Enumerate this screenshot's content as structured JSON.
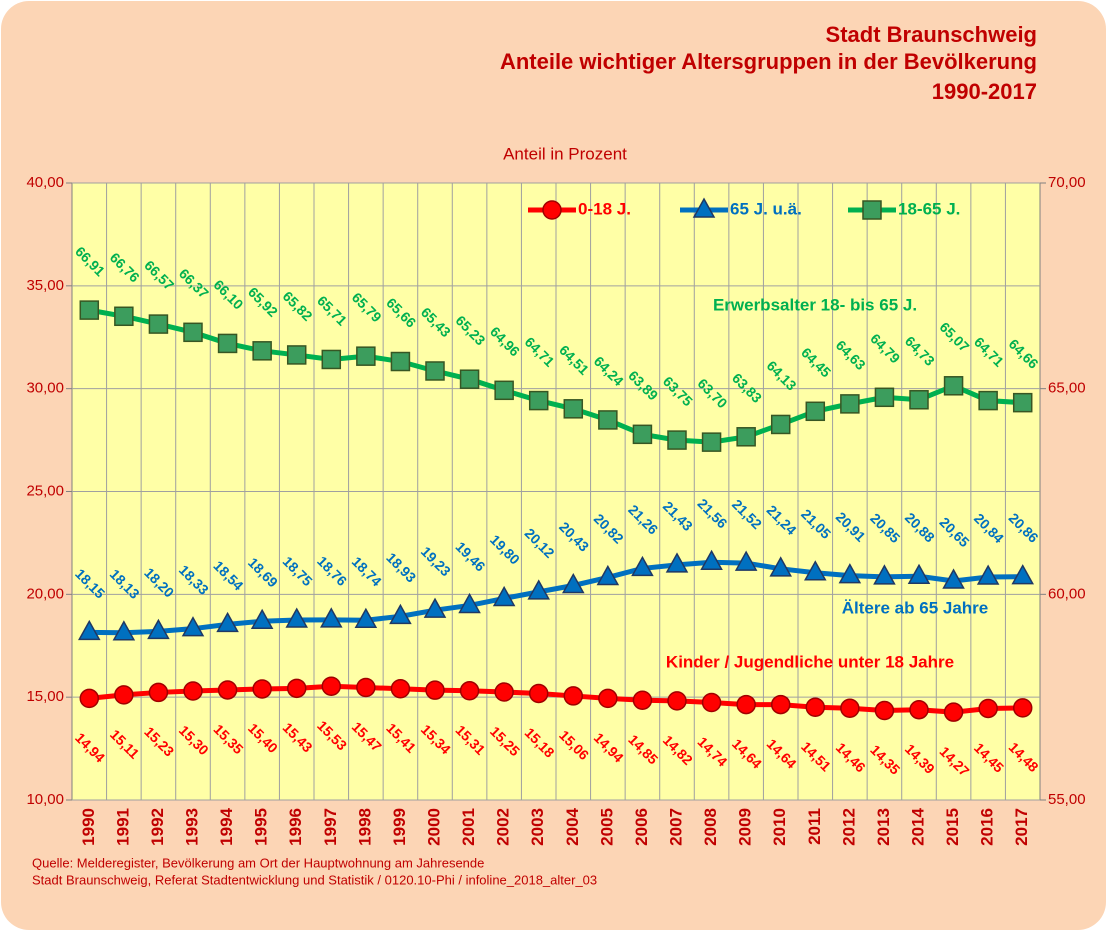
{
  "chart_data": {
    "type": "line",
    "title_lines": [
      "Stadt Braunschweig",
      "Anteile wichtiger Altersgruppen in der Bevölkerung",
      "1990-2017"
    ],
    "y_label": "Anteil in Prozent",
    "categories": [
      "1990",
      "1991",
      "1992",
      "1993",
      "1994",
      "1995",
      "1996",
      "1997",
      "1998",
      "1999",
      "2000",
      "2001",
      "2002",
      "2003",
      "2004",
      "2005",
      "2006",
      "2007",
      "2008",
      "2009",
      "2010",
      "2011",
      "2012",
      "2013",
      "2014",
      "2015",
      "2016",
      "2017"
    ],
    "ylim": [
      10,
      40
    ],
    "yticks": [
      {
        "value": 10,
        "label": "10,00"
      },
      {
        "value": 15,
        "label": "15,00"
      },
      {
        "value": 20,
        "label": "20,00"
      },
      {
        "value": 25,
        "label": "25,00"
      },
      {
        "value": 30,
        "label": "30,00"
      },
      {
        "value": 35,
        "label": "35,00"
      },
      {
        "value": 40,
        "label": "40,00"
      }
    ],
    "y2lim": [
      55,
      70
    ],
    "y2ticks": [
      {
        "value": 55,
        "label": "55,00"
      },
      {
        "value": 60,
        "label": "60,00"
      },
      {
        "value": 65,
        "label": "65,00"
      },
      {
        "value": 70,
        "label": "70,00"
      }
    ],
    "grid": true,
    "legend": "top",
    "series": [
      {
        "name": "0-18 J.",
        "color": "#ff0000",
        "marker": "circle",
        "label_side": "below",
        "values": [
          14.94,
          15.11,
          15.23,
          15.3,
          15.35,
          15.4,
          15.43,
          15.53,
          15.47,
          15.41,
          15.34,
          15.31,
          15.25,
          15.18,
          15.06,
          14.94,
          14.85,
          14.82,
          14.74,
          14.64,
          14.64,
          14.51,
          14.46,
          14.35,
          14.39,
          14.27,
          14.45,
          14.48
        ],
        "value_labels": [
          "14,94",
          "15,11",
          "15,23",
          "15,30",
          "15,35",
          "15,40",
          "15,43",
          "15,53",
          "15,47",
          "15,41",
          "15,34",
          "15,31",
          "15,25",
          "15,18",
          "15,06",
          "14,94",
          "14,85",
          "14,82",
          "14,74",
          "14,64",
          "14,64",
          "14,51",
          "14,46",
          "14,35",
          "14,39",
          "14,27",
          "14,45",
          "14,48"
        ]
      },
      {
        "name": "65 J. u.ä.",
        "color": "#0070c0",
        "marker": "triangle",
        "label_side": "above",
        "values": [
          18.15,
          18.13,
          18.2,
          18.33,
          18.54,
          18.69,
          18.75,
          18.76,
          18.74,
          18.93,
          19.23,
          19.46,
          19.8,
          20.12,
          20.43,
          20.82,
          21.26,
          21.43,
          21.56,
          21.52,
          21.24,
          21.05,
          20.91,
          20.85,
          20.88,
          20.65,
          20.84,
          20.86
        ],
        "value_labels": [
          "18,15",
          "18,13",
          "18,20",
          "18,33",
          "18,54",
          "18,69",
          "18,75",
          "18,76",
          "18,74",
          "18,93",
          "19,23",
          "19,46",
          "19,80",
          "20,12",
          "20,43",
          "20,82",
          "21,26",
          "21,43",
          "21,56",
          "21,52",
          "21,24",
          "21,05",
          "20,91",
          "20,85",
          "20,88",
          "20,65",
          "20,84",
          "20,86"
        ]
      },
      {
        "name": "18-65 J.",
        "color": "#00b050",
        "marker": "square",
        "axis": "y2",
        "label_side": "above",
        "values": [
          66.91,
          66.76,
          66.57,
          66.37,
          66.1,
          65.92,
          65.82,
          65.71,
          65.79,
          65.66,
          65.43,
          65.23,
          64.96,
          64.71,
          64.51,
          64.24,
          63.89,
          63.75,
          63.7,
          63.83,
          64.13,
          64.45,
          64.63,
          64.79,
          64.73,
          65.07,
          64.71,
          64.66
        ],
        "value_labels": [
          "66,91",
          "66,76",
          "66,57",
          "66,37",
          "66,10",
          "65,92",
          "65,82",
          "65,71",
          "65,79",
          "65,66",
          "65,43",
          "65,23",
          "64,96",
          "64,71",
          "64,51",
          "64,24",
          "63,89",
          "63,75",
          "63,70",
          "63,83",
          "64,13",
          "64,45",
          "64,63",
          "64,79",
          "64,73",
          "65,07",
          "64,71",
          "64,66"
        ]
      }
    ],
    "annotations": [
      {
        "text": "Erwerbsalter 18- bis 65 J.",
        "color": "#00b050"
      },
      {
        "text": "Ältere ab 65 Jahre",
        "color": "#0070c0"
      },
      {
        "text": "Kinder / Jugendliche unter 18 Jahre",
        "color": "#ff0000"
      }
    ],
    "source": [
      "Quelle: Melderegister, Bevölkerung am Ort der Hauptwohnung am Jahresende",
      "Stadt Braunschweig, Referat Stadtentwicklung und Statistik / 0120.10-Phi / infoline_2018_alter_03"
    ]
  }
}
